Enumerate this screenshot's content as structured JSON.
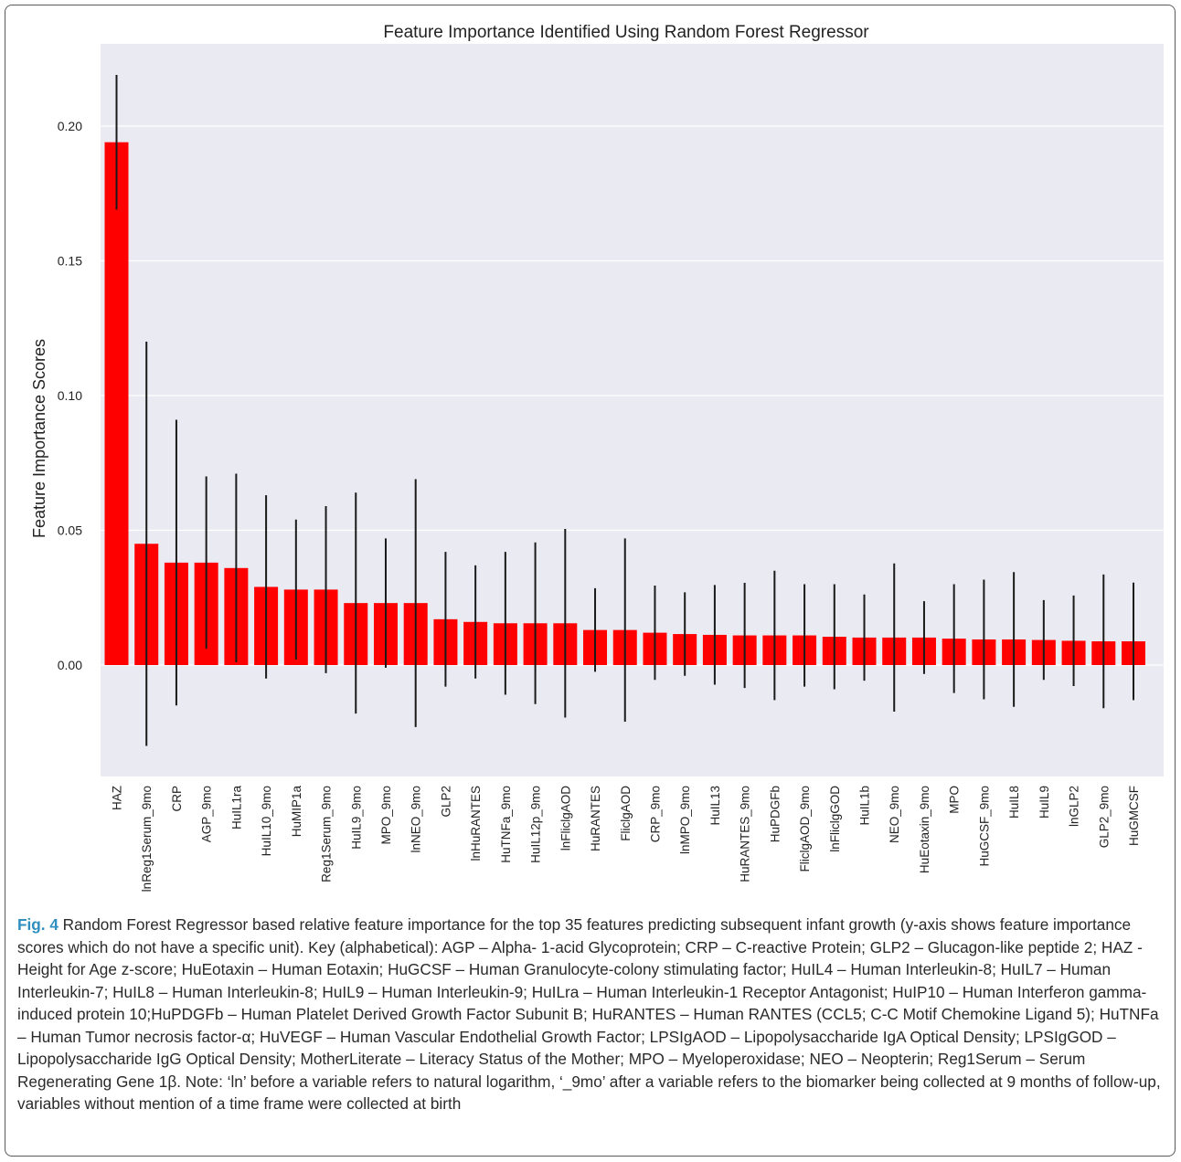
{
  "chart_data": {
    "type": "bar",
    "title": "Feature Importance Identified Using Random Forest Regressor",
    "xlabel": "",
    "ylabel": "Feature Importance Scores",
    "ylim": [
      -0.04,
      0.237
    ],
    "yticks": [
      "0.00",
      "0.05",
      "0.10",
      "0.15",
      "0.20"
    ],
    "ytick_values": [
      0,
      0.05,
      0.1,
      0.15,
      0.2
    ],
    "grid": true,
    "bar_color": "#ff0000",
    "error_color": "#1a1a1a",
    "background_color": "#eaeaf2",
    "categories": [
      "HAZ",
      "lnReg1Serum_9mo",
      "CRP",
      "AGP_9mo",
      "HuIL1ra",
      "HuIL10_9mo",
      "HuMIP1a",
      "Reg1Serum_9mo",
      "HuIL9_9mo",
      "MPO_9mo",
      "lnNEO_9mo",
      "GLP2",
      "lnHuRANTES",
      "HuTNFa_9mo",
      "HuIL12p_9mo",
      "lnFliclgAOD",
      "HuRANTES",
      "FliclgAOD",
      "CRP_9mo",
      "lnMPO_9mo",
      "HuIL13",
      "HuRANTES_9mo",
      "HuPDGFb",
      "FliclgAOD_9mo",
      "lnFliclgGOD",
      "HuIL1b",
      "NEO_9mo",
      "HuEotaxin_9mo",
      "MPO",
      "HuGCSF_9mo",
      "HuIL8",
      "HuIL9",
      "lnGLP2",
      "GLP2_9mo",
      "HuGMCSF"
    ],
    "values": [
      0.194,
      0.045,
      0.038,
      0.038,
      0.036,
      0.029,
      0.028,
      0.028,
      0.023,
      0.023,
      0.023,
      0.017,
      0.016,
      0.0155,
      0.0155,
      0.0155,
      0.013,
      0.013,
      0.012,
      0.0115,
      0.0112,
      0.011,
      0.011,
      0.011,
      0.0105,
      0.0102,
      0.0102,
      0.0102,
      0.0098,
      0.0095,
      0.0095,
      0.0093,
      0.009,
      0.0088,
      0.0088
    ],
    "errors": [
      0.025,
      0.075,
      0.053,
      0.032,
      0.035,
      0.034,
      0.026,
      0.031,
      0.041,
      0.024,
      0.046,
      0.025,
      0.021,
      0.0265,
      0.03,
      0.035,
      0.0155,
      0.034,
      0.0175,
      0.0155,
      0.0185,
      0.0195,
      0.024,
      0.019,
      0.0195,
      0.016,
      0.0275,
      0.0135,
      0.0202,
      0.0222,
      0.025,
      0.0148,
      0.0168,
      0.0248,
      0.0218
    ]
  },
  "caption": {
    "label": "Fig. 4",
    "text": "Random Forest Regressor based relative feature importance for the top 35 features predicting subsequent infant growth (y-axis shows feature importance scores which do not have a specific unit). Key (alphabetical): AGP – Alpha- 1-acid Glycoprotein; CRP – C-reactive Protein; GLP2 – Glucagon-like peptide 2; HAZ - Height for Age z-score; HuEotaxin – Human Eotaxin; HuGCSF – Human Granulocyte-colony stimulating factor; HuIL4 – Human Interleukin-8; HuIL7 – Human Interleukin-7; HuIL8 – Human Interleukin-8; HuIL9 – Human Interleukin-9; HuILra – Human Interleukin-1 Receptor Antagonist; HuIP10 – Human Interferon gamma-induced protein 10;HuPDGFb – Human Platelet Derived Growth Factor Subunit B; HuRANTES – Human RANTES (CCL5; C-C Motif Chemokine Ligand 5); HuTNFa – Human Tumor necrosis factor-α; HuVEGF – Human Vascular Endothelial Growth Factor; LPSIgAOD – Lipopolysaccharide IgA Optical Density; LPSIgGOD – Lipopolysaccharide IgG Optical Density; MotherLiterate – Literacy Status of the Mother; MPO – Myeloperoxidase; NEO – Neopterin; Reg1Serum – Serum Regenerating Gene 1β. Note: ‘ln’ before a variable refers to natural logarithm, ‘_9mo’ after a variable refers to the biomarker being collected at 9 months of follow-up, variables without mention of a time frame were collected at birth"
  }
}
